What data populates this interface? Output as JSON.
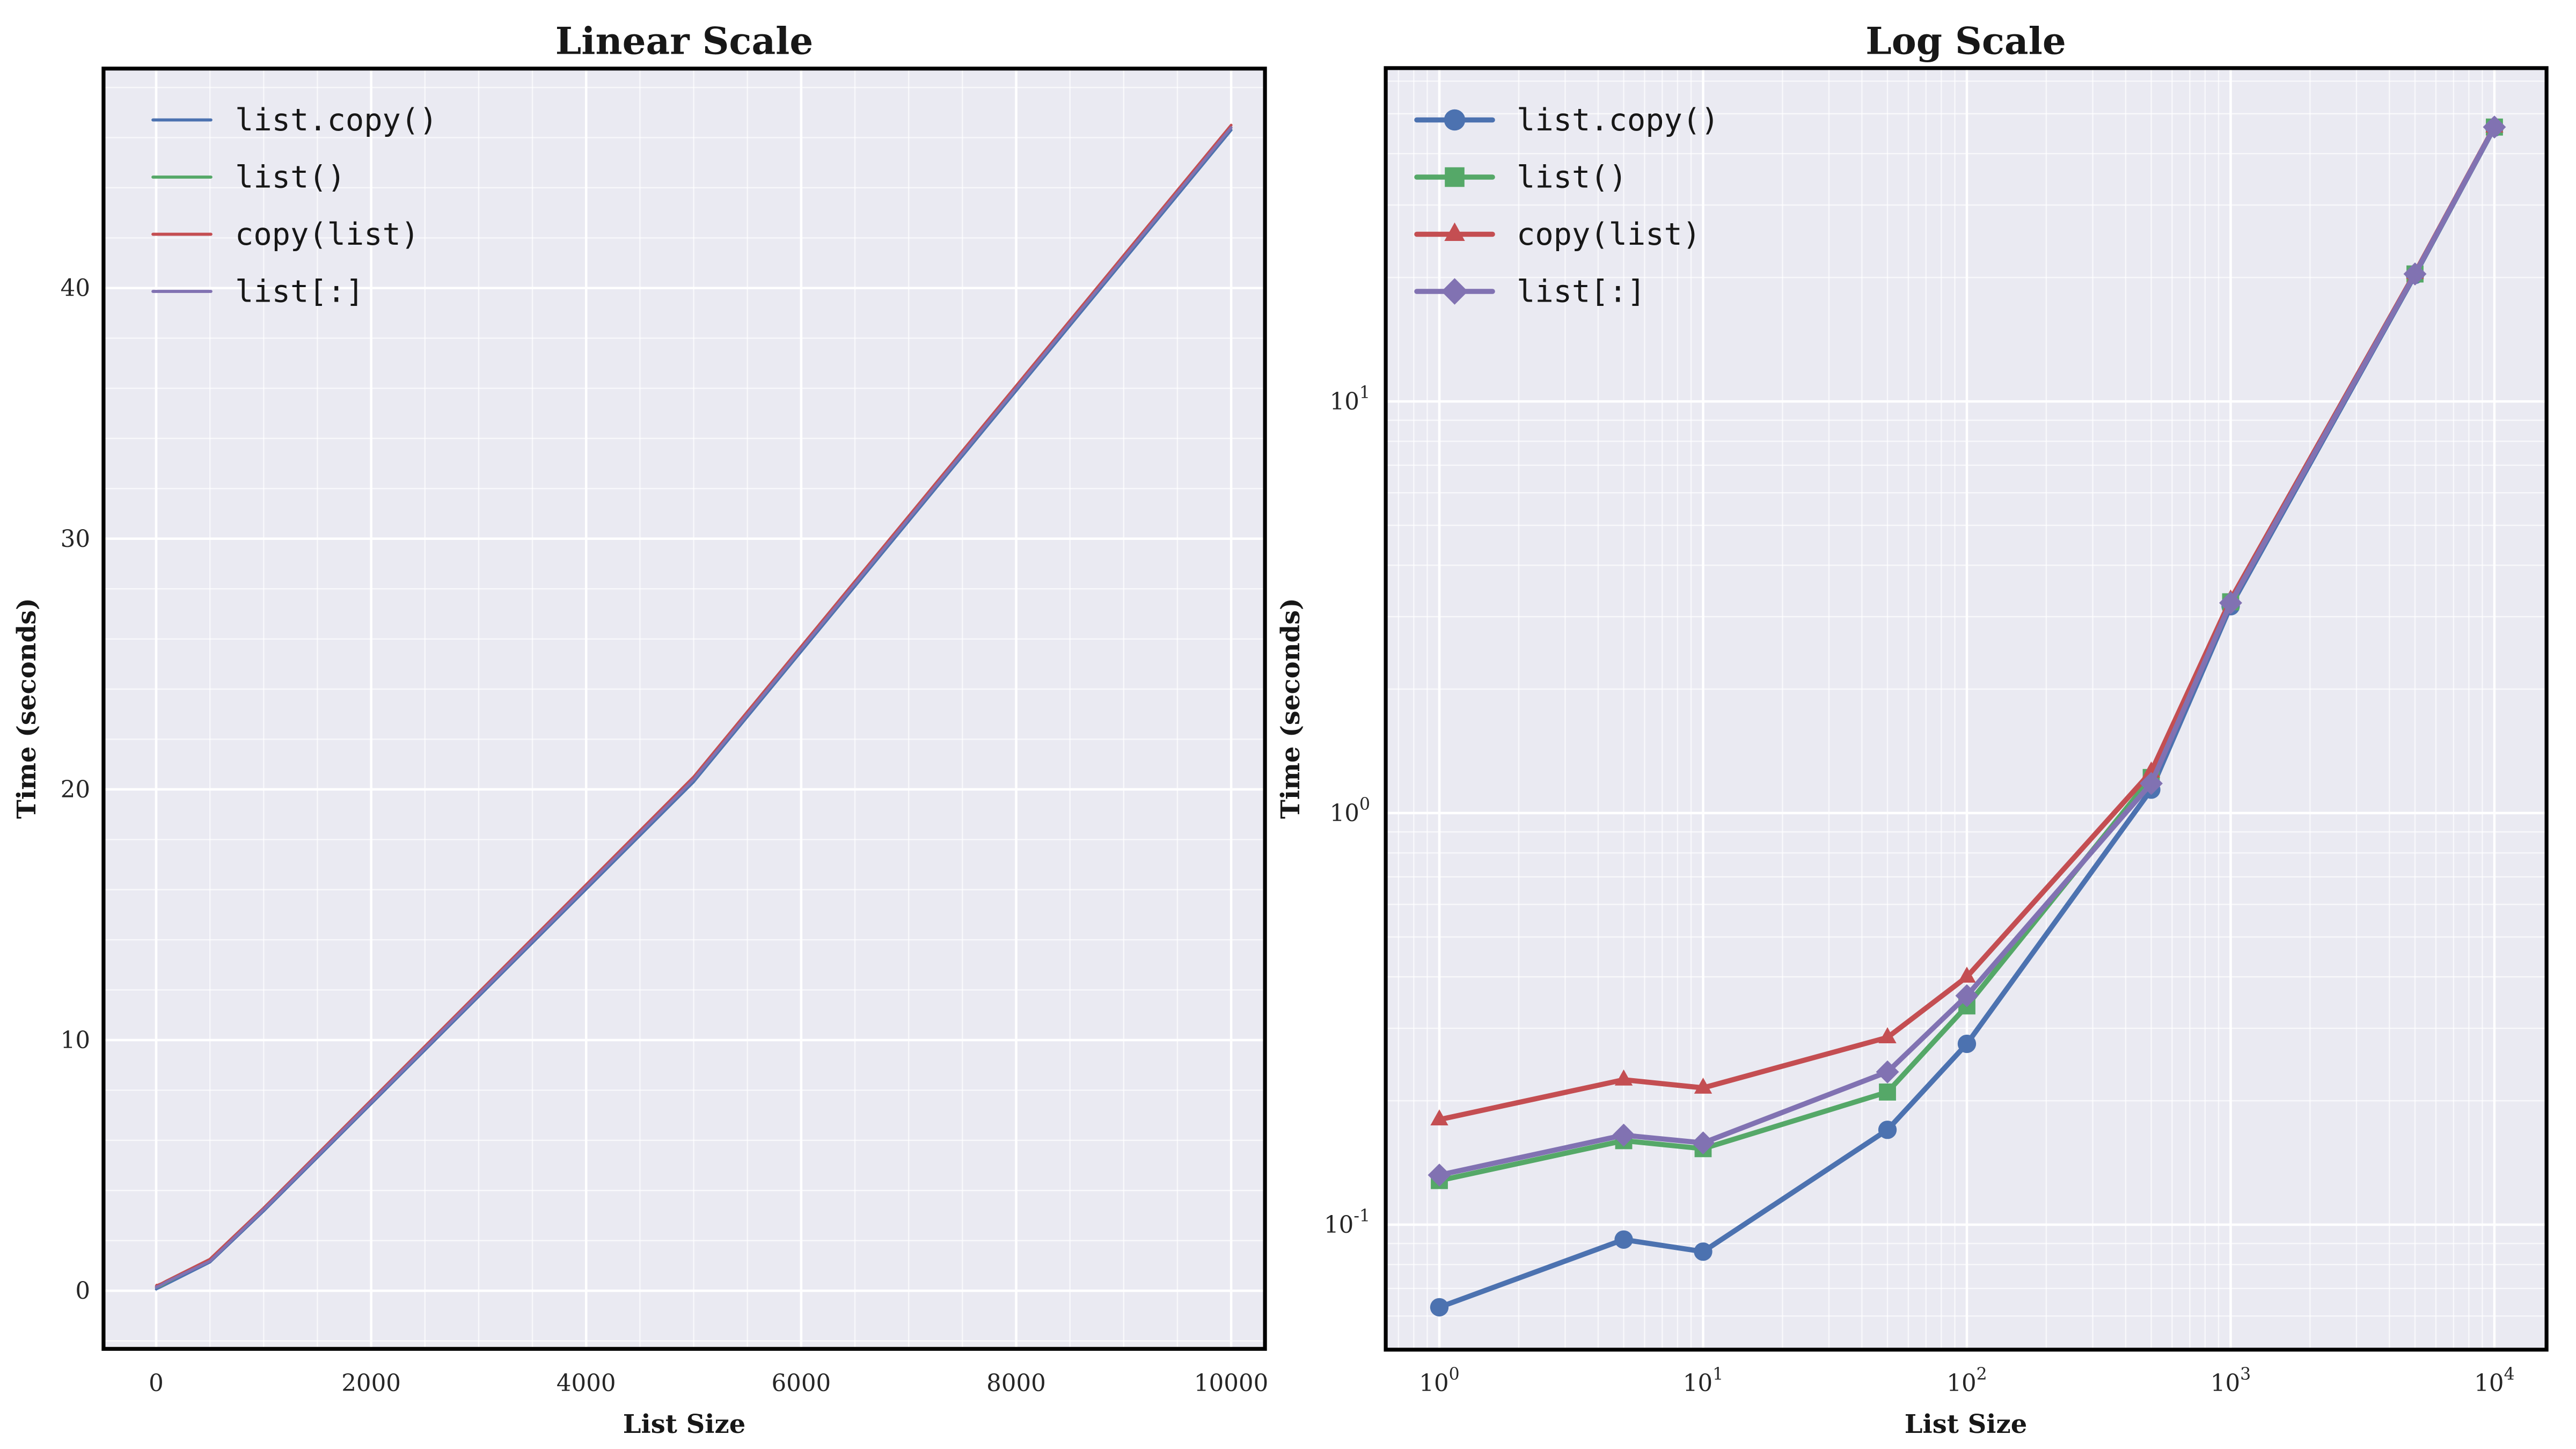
{
  "figure": {
    "background": "#ffffff",
    "axes_background": "#eaeaf2",
    "grid_color": "#ffffff",
    "spine_color": "#000000",
    "palette": {
      "blue": "#4c72b0",
      "green": "#55a868",
      "red": "#c44e52",
      "purple": "#8172b2"
    }
  },
  "chart_data": [
    {
      "type": "line",
      "title": "Linear Scale",
      "xlabel": "List Size",
      "ylabel": "Time (seconds)",
      "xscale": "linear",
      "yscale": "linear",
      "grid": true,
      "markers": false,
      "legend_position": "upper left",
      "x": [
        1,
        5,
        10,
        50,
        100,
        500,
        1000,
        5000,
        10000
      ],
      "xticks": [
        0,
        2000,
        4000,
        6000,
        8000,
        10000
      ],
      "yticks": [
        0,
        10,
        20,
        30,
        40
      ],
      "xlim": [
        -500,
        10500
      ],
      "ylim": [
        -2.3,
        48.8
      ],
      "series": [
        {
          "name": "list.copy()",
          "color": "#4c72b0",
          "marker": "circle",
          "values": [
            0.063,
            0.092,
            0.086,
            0.17,
            0.275,
            1.14,
            3.18,
            20.3,
            46.3
          ]
        },
        {
          "name": "list()",
          "color": "#55a868",
          "marker": "square",
          "values": [
            0.128,
            0.16,
            0.153,
            0.21,
            0.34,
            1.22,
            3.26,
            20.4,
            46.4
          ]
        },
        {
          "name": "copy(list)",
          "color": "#c44e52",
          "marker": "triangle",
          "values": [
            0.18,
            0.225,
            0.215,
            0.285,
            0.4,
            1.26,
            3.3,
            20.5,
            46.5
          ]
        },
        {
          "name": "list[:]",
          "color": "#8172b2",
          "marker": "diamond",
          "values": [
            0.132,
            0.165,
            0.158,
            0.235,
            0.36,
            1.18,
            3.24,
            20.4,
            46.4
          ]
        }
      ]
    },
    {
      "type": "line",
      "title": "Log Scale",
      "xlabel": "List Size",
      "ylabel": "Time (seconds)",
      "xscale": "log",
      "yscale": "log",
      "grid": true,
      "markers": true,
      "legend_position": "upper left",
      "x": [
        1,
        5,
        10,
        50,
        100,
        500,
        1000,
        5000,
        10000
      ],
      "xticks": [
        1,
        10,
        100,
        1000,
        10000
      ],
      "yticks": [
        0.1,
        1,
        10
      ],
      "xlim": [
        0.63,
        15850
      ],
      "ylim": [
        0.049,
        64.6
      ],
      "series": [
        {
          "name": "list.copy()",
          "color": "#4c72b0",
          "marker": "circle",
          "values": [
            0.063,
            0.092,
            0.086,
            0.17,
            0.275,
            1.14,
            3.18,
            20.3,
            46.3
          ]
        },
        {
          "name": "list()",
          "color": "#55a868",
          "marker": "square",
          "values": [
            0.128,
            0.16,
            0.153,
            0.21,
            0.34,
            1.22,
            3.26,
            20.4,
            46.4
          ]
        },
        {
          "name": "copy(list)",
          "color": "#c44e52",
          "marker": "triangle",
          "values": [
            0.18,
            0.225,
            0.215,
            0.285,
            0.4,
            1.26,
            3.3,
            20.5,
            46.5
          ]
        },
        {
          "name": "list[:]",
          "color": "#8172b2",
          "marker": "diamond",
          "values": [
            0.132,
            0.165,
            0.158,
            0.235,
            0.36,
            1.18,
            3.24,
            20.4,
            46.4
          ]
        }
      ]
    }
  ]
}
